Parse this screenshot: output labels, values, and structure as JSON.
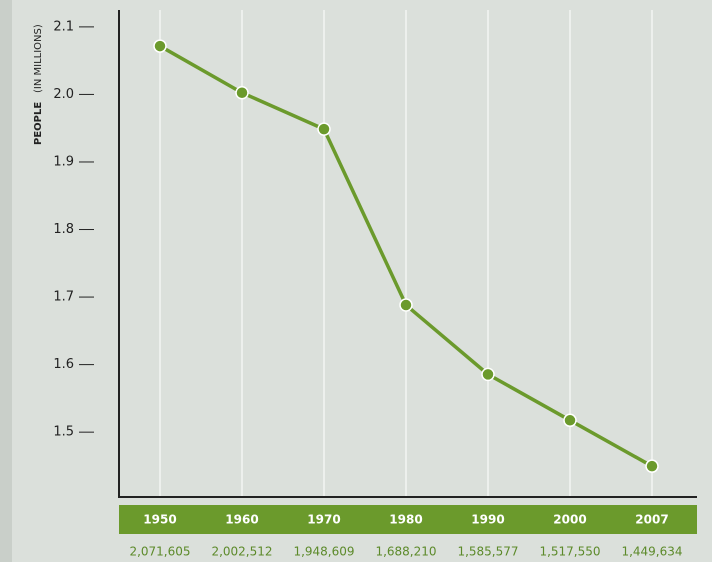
{
  "chart_data": {
    "type": "line",
    "ylabel": "PEOPLE",
    "yunit": "(IN MILLIONS)",
    "categories": [
      "1950",
      "1960",
      "1970",
      "1980",
      "1990",
      "2000",
      "2007"
    ],
    "series": [
      {
        "color": "#6b9a2c",
        "values": [
          2.071605,
          2.002512,
          1.948609,
          1.68821,
          1.585577,
          1.51755,
          1.449634
        ],
        "value_labels": [
          "2,071,605",
          "2,002,512",
          "1,948,609",
          "1,688,210",
          "1,585,577",
          "1,517,550",
          "1,449,634"
        ]
      }
    ],
    "ylim": [
      1.404,
      2.125
    ],
    "yticks": [
      {
        "value": 1.5,
        "label": "1.5"
      },
      1.6,
      1.7,
      1.8,
      1.9,
      {
        "value": 2,
        "label": "2.0"
      },
      2.1
    ],
    "grid": true
  }
}
